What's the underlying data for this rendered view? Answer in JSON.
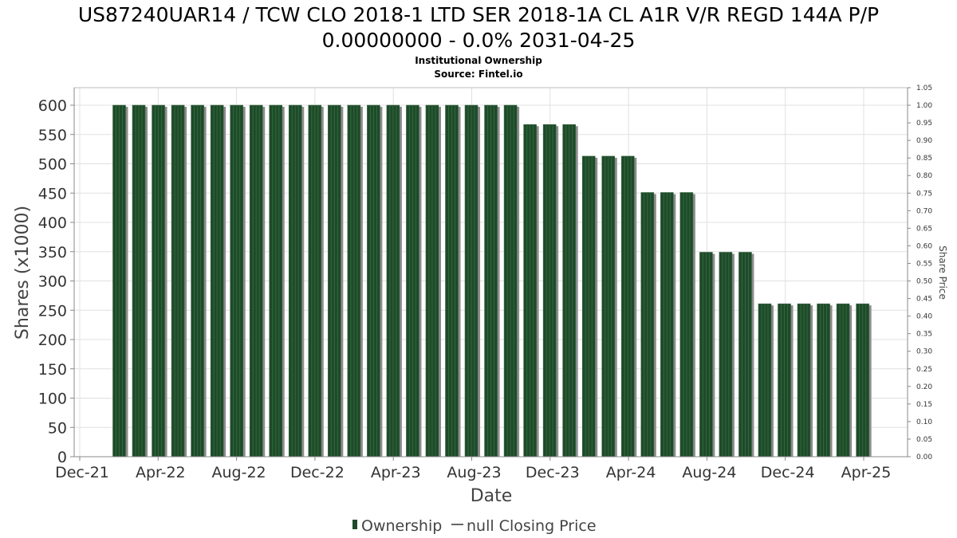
{
  "header": {
    "title_line1": "US87240UAR14 / TCW CLO 2018-1 LTD SER 2018-1A CL A1R V/R REGD 144A P/P",
    "title_line2": "0.00000000 - 0.0% 2031-04-25",
    "subtitle": "Institutional Ownership",
    "source": "Source: Fintel.io"
  },
  "legend": {
    "ownership_label": "Ownership",
    "price_label": "null Closing Price"
  },
  "chart_data": {
    "type": "bar",
    "xlabel": "Date",
    "ylabel": "Shares (x1000)",
    "y2label": "Share Price",
    "ylim": [
      0,
      620
    ],
    "y2lim": [
      0,
      1.05
    ],
    "yticks": [
      0,
      50,
      100,
      150,
      200,
      250,
      300,
      350,
      400,
      450,
      500,
      550,
      600
    ],
    "y2ticks": [
      "0.00",
      "0.05",
      "0.10",
      "0.15",
      "0.20",
      "0.25",
      "0.30",
      "0.35",
      "0.40",
      "0.45",
      "0.50",
      "0.55",
      "0.60",
      "0.65",
      "0.70",
      "0.75",
      "0.80",
      "0.85",
      "0.90",
      "0.95",
      "1.00",
      "1.05"
    ],
    "xticks": [
      "Dec-21",
      "Apr-22",
      "Aug-22",
      "Dec-22",
      "Apr-23",
      "Aug-23",
      "Dec-23",
      "Apr-24",
      "Aug-24",
      "Dec-24",
      "Apr-25"
    ],
    "grid": true,
    "legend_position": "bottom",
    "colors": {
      "bar": "#1f4a2a",
      "bar_shadow": "#8c8c8c",
      "grid": "#e0e0e0"
    },
    "series": [
      {
        "name": "Ownership",
        "values": [
          600,
          600,
          600,
          600,
          600,
          600,
          600,
          600,
          600,
          600,
          600,
          600,
          600,
          600,
          600,
          600,
          600,
          600,
          600,
          600,
          600,
          567,
          567,
          567,
          513,
          513,
          513,
          451,
          451,
          451,
          349,
          349,
          349,
          261,
          261,
          261,
          261,
          261,
          261
        ]
      }
    ]
  }
}
